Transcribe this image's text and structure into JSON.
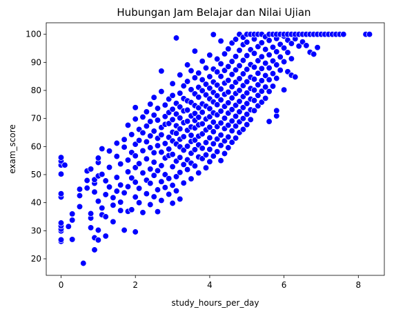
{
  "chart_data": {
    "type": "scatter",
    "title": "Hubungan Jam Belajar dan Nilai Ujian",
    "xlabel": "study_hours_per_day",
    "ylabel": "exam_score",
    "xlim": [
      -0.4,
      8.7
    ],
    "ylim": [
      14.1,
      104.1
    ],
    "xticks": [
      0,
      2,
      4,
      6,
      8
    ],
    "yticks": [
      20,
      30,
      40,
      50,
      60,
      70,
      80,
      90,
      100
    ],
    "grid": false,
    "marker_color": "#0000ff",
    "marker_edge_color": "#ffffff",
    "points": [
      [
        0.0,
        26.2
      ],
      [
        0.0,
        26.8
      ],
      [
        0.0,
        29.9
      ],
      [
        0.0,
        30.6
      ],
      [
        0.0,
        31.7
      ],
      [
        0.0,
        32.8
      ],
      [
        0.0,
        42.0
      ],
      [
        0.0,
        43.2
      ],
      [
        0.0,
        50.2
      ],
      [
        0.0,
        53.4
      ],
      [
        0.0,
        54.8
      ],
      [
        0.0,
        56.1
      ],
      [
        0.1,
        53.4
      ],
      [
        0.2,
        31.5
      ],
      [
        0.3,
        33.8
      ],
      [
        0.3,
        36.0
      ],
      [
        0.3,
        26.9
      ],
      [
        0.5,
        38.6
      ],
      [
        0.5,
        42.5
      ],
      [
        0.5,
        44.8
      ],
      [
        0.6,
        18.4
      ],
      [
        0.7,
        45.2
      ],
      [
        0.7,
        47.9
      ],
      [
        0.7,
        51.3
      ],
      [
        0.8,
        31.1
      ],
      [
        0.8,
        34.5
      ],
      [
        0.8,
        36.1
      ],
      [
        0.8,
        52.0
      ],
      [
        0.9,
        23.2
      ],
      [
        0.9,
        27.5
      ],
      [
        0.9,
        43.8
      ],
      [
        0.9,
        46.9
      ],
      [
        0.9,
        48.2
      ],
      [
        1.0,
        26.7
      ],
      [
        1.0,
        30.2
      ],
      [
        1.0,
        40.5
      ],
      [
        1.0,
        49.5
      ],
      [
        1.0,
        54.3
      ],
      [
        1.0,
        55.9
      ],
      [
        1.1,
        35.7
      ],
      [
        1.1,
        38.1
      ],
      [
        1.1,
        50.1
      ],
      [
        1.1,
        59.2
      ],
      [
        1.2,
        28.1
      ],
      [
        1.2,
        35.0
      ],
      [
        1.2,
        42.9
      ],
      [
        1.2,
        47.8
      ],
      [
        1.3,
        45.6
      ],
      [
        1.3,
        52.6
      ],
      [
        1.3,
        58.4
      ],
      [
        1.4,
        39.1
      ],
      [
        1.4,
        41.8
      ],
      [
        1.4,
        33.2
      ],
      [
        1.5,
        44.1
      ],
      [
        1.5,
        49.0
      ],
      [
        1.5,
        56.5
      ],
      [
        1.5,
        61.2
      ],
      [
        1.6,
        37.2
      ],
      [
        1.6,
        40.2
      ],
      [
        1.6,
        46.3
      ],
      [
        1.6,
        53.8
      ],
      [
        1.7,
        30.2
      ],
      [
        1.7,
        43.5
      ],
      [
        1.7,
        59.8
      ],
      [
        1.7,
        62.5
      ],
      [
        1.8,
        36.9
      ],
      [
        1.8,
        45.7
      ],
      [
        1.8,
        51.0
      ],
      [
        1.8,
        55.2
      ],
      [
        1.8,
        67.6
      ],
      [
        1.9,
        37.5
      ],
      [
        1.9,
        48.8
      ],
      [
        1.9,
        57.9
      ],
      [
        1.9,
        64.3
      ],
      [
        2.0,
        29.6
      ],
      [
        2.0,
        42.0
      ],
      [
        2.0,
        47.3
      ],
      [
        2.0,
        52.5
      ],
      [
        2.0,
        56.7
      ],
      [
        2.0,
        60.8
      ],
      [
        2.0,
        69.8
      ],
      [
        2.0,
        73.9
      ],
      [
        2.1,
        40.0
      ],
      [
        2.1,
        45.1
      ],
      [
        2.1,
        53.9
      ],
      [
        2.1,
        62.2
      ],
      [
        2.1,
        66.1
      ],
      [
        2.2,
        36.5
      ],
      [
        2.2,
        50.6
      ],
      [
        2.2,
        58.5
      ],
      [
        2.2,
        64.9
      ],
      [
        2.2,
        70.5
      ],
      [
        2.3,
        43.2
      ],
      [
        2.3,
        48.0
      ],
      [
        2.3,
        55.6
      ],
      [
        2.3,
        61.7
      ],
      [
        2.3,
        67.3
      ],
      [
        2.3,
        72.4
      ],
      [
        2.4,
        39.3
      ],
      [
        2.4,
        46.9
      ],
      [
        2.4,
        52.0
      ],
      [
        2.4,
        59.6
      ],
      [
        2.4,
        63.8
      ],
      [
        2.4,
        68.9
      ],
      [
        2.4,
        75.1
      ],
      [
        2.5,
        42.1
      ],
      [
        2.5,
        49.7
      ],
      [
        2.5,
        54.4
      ],
      [
        2.5,
        57.8
      ],
      [
        2.5,
        65.5
      ],
      [
        2.5,
        71.2
      ],
      [
        2.5,
        77.5
      ],
      [
        2.6,
        36.8
      ],
      [
        2.6,
        44.6
      ],
      [
        2.6,
        51.4
      ],
      [
        2.6,
        60.3
      ],
      [
        2.6,
        62.9
      ],
      [
        2.6,
        69.4
      ],
      [
        2.6,
        73.6
      ],
      [
        2.7,
        40.8
      ],
      [
        2.7,
        47.5
      ],
      [
        2.7,
        53.2
      ],
      [
        2.7,
        58.0
      ],
      [
        2.7,
        64.2
      ],
      [
        2.7,
        66.8
      ],
      [
        2.7,
        79.6
      ],
      [
        2.7,
        86.9
      ],
      [
        2.8,
        45.4
      ],
      [
        2.8,
        50.0
      ],
      [
        2.8,
        55.9
      ],
      [
        2.8,
        61.1
      ],
      [
        2.8,
        67.9
      ],
      [
        2.8,
        70.7
      ],
      [
        2.8,
        74.8
      ],
      [
        2.9,
        43.0
      ],
      [
        2.9,
        48.6
      ],
      [
        2.9,
        56.8
      ],
      [
        2.9,
        59.1
      ],
      [
        2.9,
        63.3
      ],
      [
        2.9,
        68.2
      ],
      [
        2.9,
        72.1
      ],
      [
        2.9,
        76.9
      ],
      [
        3.0,
        39.8
      ],
      [
        3.0,
        46.2
      ],
      [
        3.0,
        52.8
      ],
      [
        3.0,
        57.2
      ],
      [
        3.0,
        62.0
      ],
      [
        3.0,
        65.1
      ],
      [
        3.0,
        69.6
      ],
      [
        3.0,
        73.3
      ],
      [
        3.0,
        78.2
      ],
      [
        3.0,
        82.4
      ],
      [
        3.1,
        44.2
      ],
      [
        3.1,
        49.3
      ],
      [
        3.1,
        54.8
      ],
      [
        3.1,
        60.9
      ],
      [
        3.1,
        64.7
      ],
      [
        3.1,
        67.4
      ],
      [
        3.1,
        71.6
      ],
      [
        3.1,
        75.4
      ],
      [
        3.1,
        98.7
      ],
      [
        3.2,
        41.3
      ],
      [
        3.2,
        50.8
      ],
      [
        3.2,
        56.1
      ],
      [
        3.2,
        59.9
      ],
      [
        3.2,
        62.6
      ],
      [
        3.2,
        66.3
      ],
      [
        3.2,
        70.2
      ],
      [
        3.2,
        74.1
      ],
      [
        3.2,
        79.0
      ],
      [
        3.2,
        85.5
      ],
      [
        3.3,
        47.0
      ],
      [
        3.3,
        53.6
      ],
      [
        3.3,
        58.7
      ],
      [
        3.3,
        63.5
      ],
      [
        3.3,
        68.5
      ],
      [
        3.3,
        72.7
      ],
      [
        3.3,
        77.1
      ],
      [
        3.3,
        81.6
      ],
      [
        3.4,
        51.8
      ],
      [
        3.4,
        55.3
      ],
      [
        3.4,
        60.1
      ],
      [
        3.4,
        65.8
      ],
      [
        3.4,
        69.0
      ],
      [
        3.4,
        73.0
      ],
      [
        3.4,
        76.3
      ],
      [
        3.4,
        83.2
      ],
      [
        3.4,
        89.1
      ],
      [
        3.5,
        48.5
      ],
      [
        3.5,
        54.1
      ],
      [
        3.5,
        57.6
      ],
      [
        3.5,
        61.8
      ],
      [
        3.5,
        64.0
      ],
      [
        3.5,
        67.0
      ],
      [
        3.5,
        70.9
      ],
      [
        3.5,
        75.7
      ],
      [
        3.5,
        80.3
      ],
      [
        3.5,
        87.0
      ],
      [
        3.6,
        53.1
      ],
      [
        3.6,
        58.9
      ],
      [
        3.6,
        62.3
      ],
      [
        3.6,
        66.6
      ],
      [
        3.6,
        69.3
      ],
      [
        3.6,
        71.8
      ],
      [
        3.6,
        74.6
      ],
      [
        3.6,
        78.8
      ],
      [
        3.6,
        84.5
      ],
      [
        3.6,
        94.0
      ],
      [
        3.7,
        50.6
      ],
      [
        3.7,
        56.3
      ],
      [
        3.7,
        60.6
      ],
      [
        3.7,
        63.7
      ],
      [
        3.7,
        67.7
      ],
      [
        3.7,
        70.4
      ],
      [
        3.7,
        73.8
      ],
      [
        3.7,
        77.6
      ],
      [
        3.7,
        81.1
      ],
      [
        3.7,
        86.2
      ],
      [
        3.8,
        55.7
      ],
      [
        3.8,
        59.4
      ],
      [
        3.8,
        64.5
      ],
      [
        3.8,
        68.1
      ],
      [
        3.8,
        72.2
      ],
      [
        3.8,
        75.2
      ],
      [
        3.8,
        79.9
      ],
      [
        3.8,
        83.8
      ],
      [
        3.8,
        90.4
      ],
      [
        3.9,
        52.4
      ],
      [
        3.9,
        57.0
      ],
      [
        3.9,
        61.4
      ],
      [
        3.9,
        65.9
      ],
      [
        3.9,
        69.8
      ],
      [
        3.9,
        74.4
      ],
      [
        3.9,
        78.4
      ],
      [
        3.9,
        82.2
      ],
      [
        3.9,
        88.0
      ],
      [
        4.0,
        54.6
      ],
      [
        4.0,
        59.0
      ],
      [
        4.0,
        63.1
      ],
      [
        4.0,
        66.9
      ],
      [
        4.0,
        70.6
      ],
      [
        4.0,
        73.5
      ],
      [
        4.0,
        77.0
      ],
      [
        4.0,
        80.8
      ],
      [
        4.0,
        84.9
      ],
      [
        4.0,
        92.6
      ],
      [
        4.1,
        56.6
      ],
      [
        4.1,
        61.0
      ],
      [
        4.1,
        65.3
      ],
      [
        4.1,
        68.7
      ],
      [
        4.1,
        72.0
      ],
      [
        4.1,
        75.9
      ],
      [
        4.1,
        79.3
      ],
      [
        4.1,
        83.0
      ],
      [
        4.1,
        87.6
      ],
      [
        4.1,
        99.9
      ],
      [
        4.2,
        58.2
      ],
      [
        4.2,
        62.7
      ],
      [
        4.2,
        67.1
      ],
      [
        4.2,
        71.3
      ],
      [
        4.2,
        74.9
      ],
      [
        4.2,
        78.1
      ],
      [
        4.2,
        81.9
      ],
      [
        4.2,
        86.6
      ],
      [
        4.2,
        91.2
      ],
      [
        4.3,
        55.0
      ],
      [
        4.3,
        60.4
      ],
      [
        4.3,
        64.1
      ],
      [
        4.3,
        68.4
      ],
      [
        4.3,
        72.6
      ],
      [
        4.3,
        76.6
      ],
      [
        4.3,
        80.5
      ],
      [
        4.3,
        85.0
      ],
      [
        4.3,
        89.5
      ],
      [
        4.3,
        97.6
      ],
      [
        4.4,
        57.5
      ],
      [
        4.4,
        62.0
      ],
      [
        4.4,
        66.4
      ],
      [
        4.4,
        70.1
      ],
      [
        4.4,
        74.3
      ],
      [
        4.4,
        78.6
      ],
      [
        4.4,
        82.6
      ],
      [
        4.4,
        87.1
      ],
      [
        4.4,
        93.0
      ],
      [
        4.5,
        59.6
      ],
      [
        4.5,
        63.4
      ],
      [
        4.5,
        67.6
      ],
      [
        4.5,
        71.9
      ],
      [
        4.5,
        75.6
      ],
      [
        4.5,
        79.4
      ],
      [
        4.5,
        83.6
      ],
      [
        4.5,
        88.5
      ],
      [
        4.5,
        94.8
      ],
      [
        4.6,
        61.5
      ],
      [
        4.6,
        65.6
      ],
      [
        4.6,
        69.1
      ],
      [
        4.6,
        73.2
      ],
      [
        4.6,
        77.3
      ],
      [
        4.6,
        81.3
      ],
      [
        4.6,
        85.7
      ],
      [
        4.6,
        90.3
      ],
      [
        4.6,
        96.9
      ],
      [
        4.7,
        63.0
      ],
      [
        4.7,
        67.3
      ],
      [
        4.7,
        70.8
      ],
      [
        4.7,
        74.7
      ],
      [
        4.7,
        78.9
      ],
      [
        4.7,
        82.9
      ],
      [
        4.7,
        87.3
      ],
      [
        4.7,
        92.1
      ],
      [
        4.7,
        98.2
      ],
      [
        4.8,
        65.0
      ],
      [
        4.8,
        68.8
      ],
      [
        4.8,
        72.4
      ],
      [
        4.8,
        76.1
      ],
      [
        4.8,
        80.0
      ],
      [
        4.8,
        84.2
      ],
      [
        4.8,
        88.8
      ],
      [
        4.8,
        94.3
      ],
      [
        4.8,
        100.0
      ],
      [
        4.9,
        66.1
      ],
      [
        4.9,
        70.0
      ],
      [
        4.9,
        73.9
      ],
      [
        4.9,
        77.8
      ],
      [
        4.9,
        81.7
      ],
      [
        4.9,
        85.9
      ],
      [
        4.9,
        90.7
      ],
      [
        4.9,
        96.3
      ],
      [
        4.9,
        98.9
      ],
      [
        5.0,
        67.8
      ],
      [
        5.0,
        71.5
      ],
      [
        5.0,
        75.3
      ],
      [
        5.0,
        79.1
      ],
      [
        5.0,
        83.1
      ],
      [
        5.0,
        87.5
      ],
      [
        5.0,
        92.4
      ],
      [
        5.0,
        97.2
      ],
      [
        5.0,
        100.0
      ],
      [
        5.1,
        69.6
      ],
      [
        5.1,
        73.1
      ],
      [
        5.1,
        76.9
      ],
      [
        5.1,
        80.7
      ],
      [
        5.1,
        84.7
      ],
      [
        5.1,
        89.2
      ],
      [
        5.1,
        94.5
      ],
      [
        5.1,
        100.0
      ],
      [
        5.2,
        72.8
      ],
      [
        5.2,
        76.4
      ],
      [
        5.2,
        80.1
      ],
      [
        5.2,
        84.0
      ],
      [
        5.2,
        88.3
      ],
      [
        5.2,
        93.2
      ],
      [
        5.2,
        98.3
      ],
      [
        5.2,
        100.0
      ],
      [
        5.3,
        74.5
      ],
      [
        5.3,
        78.2
      ],
      [
        5.3,
        82.0
      ],
      [
        5.3,
        86.1
      ],
      [
        5.3,
        90.6
      ],
      [
        5.3,
        95.6
      ],
      [
        5.3,
        100.0
      ],
      [
        5.4,
        75.8
      ],
      [
        5.4,
        79.7
      ],
      [
        5.4,
        83.5
      ],
      [
        5.4,
        87.8
      ],
      [
        5.4,
        92.0
      ],
      [
        5.4,
        97.0
      ],
      [
        5.4,
        100.0
      ],
      [
        5.5,
        77.2
      ],
      [
        5.5,
        81.2
      ],
      [
        5.5,
        85.3
      ],
      [
        5.5,
        89.7
      ],
      [
        5.5,
        94.6
      ],
      [
        5.5,
        99.1
      ],
      [
        5.6,
        68.9
      ],
      [
        5.6,
        79.6
      ],
      [
        5.6,
        83.8
      ],
      [
        5.6,
        88.0
      ],
      [
        5.6,
        92.7
      ],
      [
        5.6,
        97.8
      ],
      [
        5.6,
        100.0
      ],
      [
        5.7,
        81.5
      ],
      [
        5.7,
        86.0
      ],
      [
        5.7,
        90.5
      ],
      [
        5.7,
        95.4
      ],
      [
        5.7,
        100.0
      ],
      [
        5.8,
        70.9
      ],
      [
        5.8,
        72.8
      ],
      [
        5.8,
        84.3
      ],
      [
        5.8,
        89.1
      ],
      [
        5.8,
        93.8
      ],
      [
        5.8,
        98.5
      ],
      [
        5.8,
        100.0
      ],
      [
        5.9,
        87.2
      ],
      [
        5.9,
        91.9
      ],
      [
        5.9,
        96.4
      ],
      [
        5.9,
        100.0
      ],
      [
        6.0,
        80.2
      ],
      [
        6.0,
        90.2
      ],
      [
        6.0,
        95.1
      ],
      [
        6.0,
        99.3
      ],
      [
        6.0,
        100.0
      ],
      [
        6.1,
        86.7
      ],
      [
        6.1,
        93.5
      ],
      [
        6.1,
        97.9
      ],
      [
        6.1,
        100.0
      ],
      [
        6.2,
        85.4
      ],
      [
        6.2,
        91.3
      ],
      [
        6.2,
        96.7
      ],
      [
        6.2,
        100.0
      ],
      [
        6.3,
        84.8
      ],
      [
        6.3,
        98.4
      ],
      [
        6.3,
        100.0
      ],
      [
        6.4,
        95.8
      ],
      [
        6.4,
        100.0
      ],
      [
        6.5,
        97.3
      ],
      [
        6.5,
        100.0
      ],
      [
        6.6,
        96.0
      ],
      [
        6.6,
        100.0
      ],
      [
        6.7,
        93.6
      ],
      [
        6.7,
        100.0
      ],
      [
        6.8,
        92.9
      ],
      [
        6.8,
        100.0
      ],
      [
        6.9,
        95.3
      ],
      [
        6.9,
        100.0
      ],
      [
        7.0,
        100.0
      ],
      [
        7.1,
        100.0
      ],
      [
        7.2,
        100.0
      ],
      [
        7.3,
        100.0
      ],
      [
        7.4,
        100.0
      ],
      [
        7.5,
        100.0
      ],
      [
        7.6,
        100.0
      ],
      [
        8.2,
        100.0
      ],
      [
        8.3,
        100.0
      ]
    ]
  }
}
